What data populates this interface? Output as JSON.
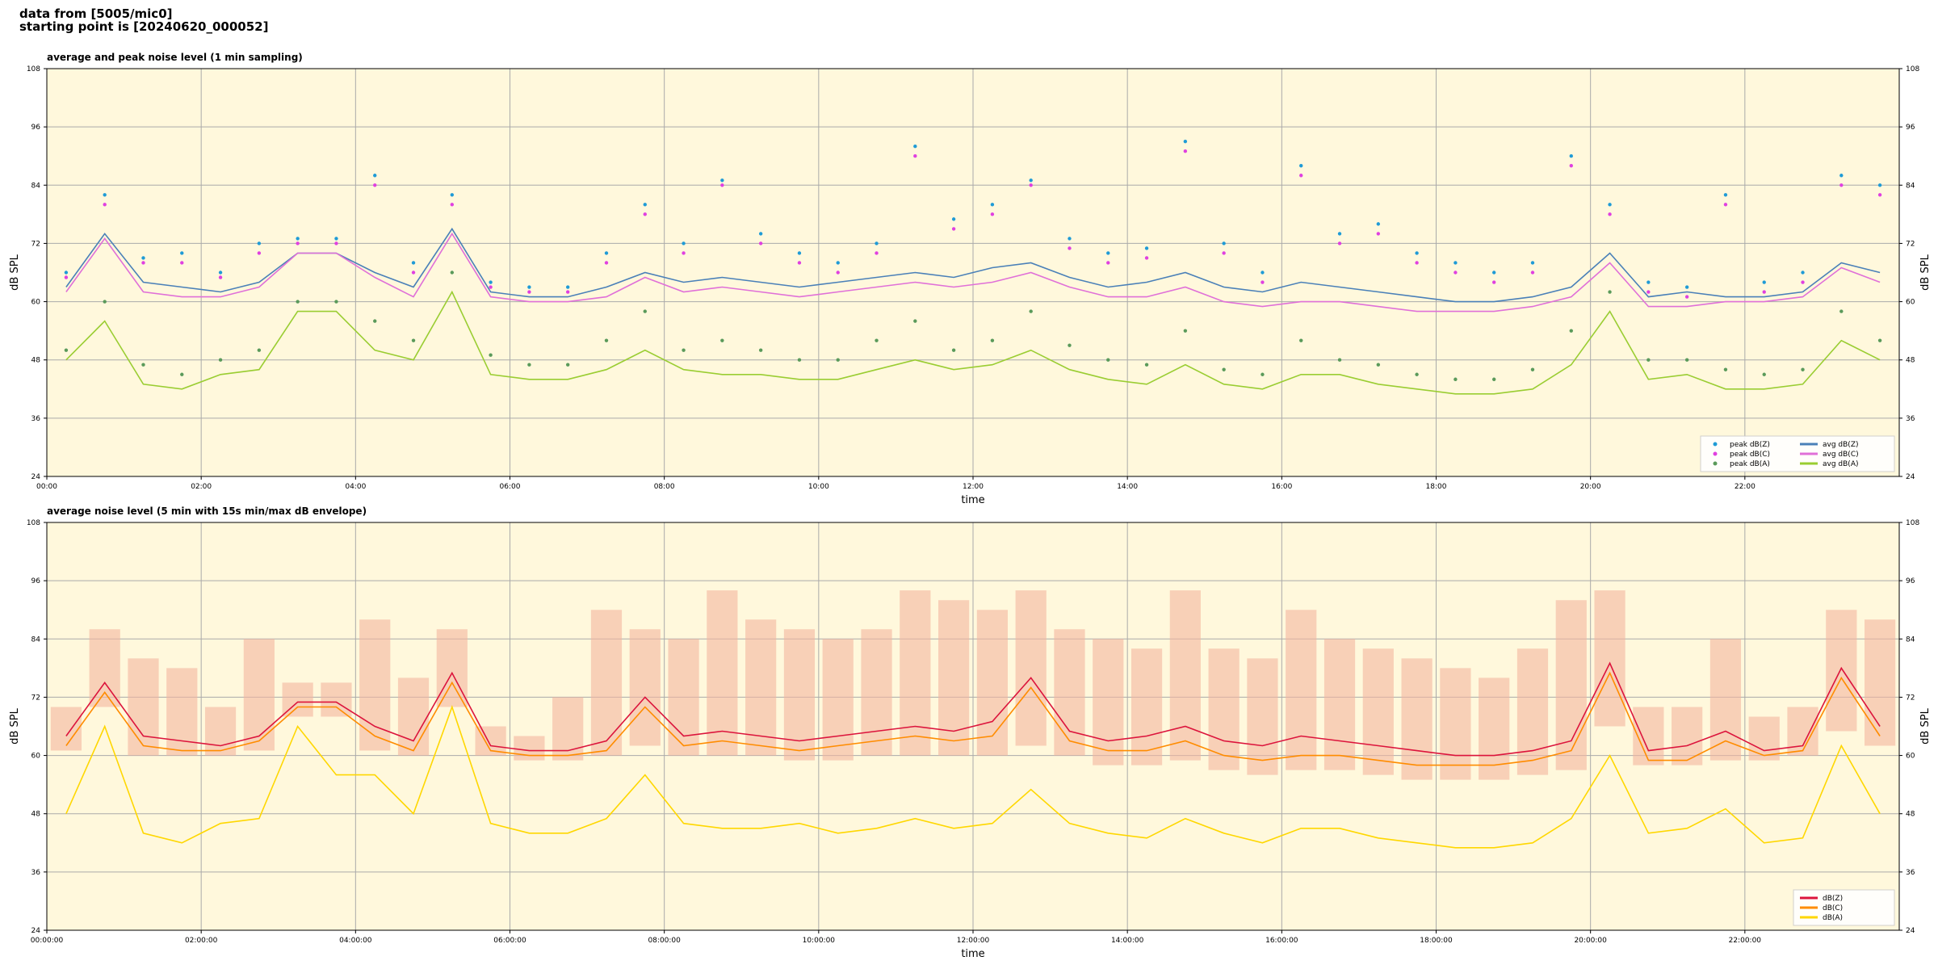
{
  "header": {
    "line1": "data from [5005/mic0]",
    "line2": "starting point is [20240620_000052]"
  },
  "chart_data": [
    {
      "type": "line",
      "title": "average and peak noise level (1 min sampling)",
      "xlabel": "time",
      "ylabel": "dB SPL",
      "background": "#fff8dc",
      "grid": true,
      "legend": "lower right",
      "legend_columns": 2,
      "xlim": [
        0,
        24
      ],
      "ylim": [
        24,
        108
      ],
      "yticks": [
        24,
        36,
        48,
        60,
        72,
        84,
        96,
        108
      ],
      "xticks": [
        {
          "value": 0,
          "label": "00:00"
        },
        {
          "value": 2,
          "label": "02:00"
        },
        {
          "value": 4,
          "label": "04:00"
        },
        {
          "value": 6,
          "label": "06:00"
        },
        {
          "value": 8,
          "label": "08:00"
        },
        {
          "value": 10,
          "label": "10:00"
        },
        {
          "value": 12,
          "label": "12:00"
        },
        {
          "value": 14,
          "label": "14:00"
        },
        {
          "value": 16,
          "label": "16:00"
        },
        {
          "value": 18,
          "label": "18:00"
        },
        {
          "value": 20,
          "label": "20:00"
        },
        {
          "value": 22,
          "label": "22:00"
        }
      ],
      "x": [
        0,
        0.5,
        1,
        1.5,
        2,
        2.5,
        3,
        3.5,
        4,
        4.5,
        5,
        5.5,
        6,
        6.5,
        7,
        7.5,
        8,
        8.5,
        9,
        9.5,
        10,
        10.5,
        11,
        11.5,
        12,
        12.5,
        13,
        13.5,
        14,
        14.5,
        15,
        15.5,
        16,
        16.5,
        17,
        17.5,
        18,
        18.5,
        19,
        19.5,
        20,
        20.5,
        21,
        21.5,
        22,
        22.5,
        23,
        23.5
      ],
      "series": [
        {
          "name": "peak dB(Z)",
          "kind": "dots",
          "color": "#1f9bd6",
          "values": [
            66,
            82,
            69,
            70,
            66,
            72,
            73,
            73,
            86,
            68,
            82,
            64,
            63,
            63,
            70,
            80,
            72,
            85,
            74,
            70,
            68,
            72,
            92,
            77,
            80,
            85,
            73,
            70,
            71,
            93,
            72,
            66,
            88,
            74,
            76,
            70,
            68,
            66,
            68,
            90,
            80,
            64,
            63,
            82,
            64,
            66,
            86,
            84
          ]
        },
        {
          "name": "peak dB(C)",
          "kind": "dots",
          "color": "#e040e0",
          "values": [
            65,
            80,
            68,
            68,
            65,
            70,
            72,
            72,
            84,
            66,
            80,
            63,
            62,
            62,
            68,
            78,
            70,
            84,
            72,
            68,
            66,
            70,
            90,
            75,
            78,
            84,
            71,
            68,
            69,
            91,
            70,
            64,
            86,
            72,
            74,
            68,
            66,
            64,
            66,
            88,
            78,
            62,
            61,
            80,
            62,
            64,
            84,
            82
          ]
        },
        {
          "name": "peak dB(A)",
          "kind": "dots",
          "color": "#5a9a5a",
          "values": [
            50,
            60,
            47,
            45,
            48,
            50,
            60,
            60,
            56,
            52,
            66,
            49,
            47,
            47,
            52,
            58,
            50,
            52,
            50,
            48,
            48,
            52,
            56,
            50,
            52,
            58,
            51,
            48,
            47,
            54,
            46,
            45,
            52,
            48,
            47,
            45,
            44,
            44,
            46,
            54,
            62,
            48,
            48,
            46,
            45,
            46,
            58,
            52
          ]
        },
        {
          "name": "avg dB(Z)",
          "kind": "line",
          "color": "#4a80b8",
          "values": [
            63,
            74,
            64,
            63,
            62,
            64,
            70,
            70,
            66,
            63,
            75,
            62,
            61,
            61,
            63,
            66,
            64,
            65,
            64,
            63,
            64,
            65,
            66,
            65,
            67,
            68,
            65,
            63,
            64,
            66,
            63,
            62,
            64,
            63,
            62,
            61,
            60,
            60,
            61,
            63,
            70,
            61,
            62,
            61,
            61,
            62,
            68,
            66
          ]
        },
        {
          "name": "avg dB(C)",
          "kind": "line",
          "color": "#e070d8",
          "values": [
            62,
            73,
            62,
            61,
            61,
            63,
            70,
            70,
            65,
            61,
            74,
            61,
            60,
            60,
            61,
            65,
            62,
            63,
            62,
            61,
            62,
            63,
            64,
            63,
            64,
            66,
            63,
            61,
            61,
            63,
            60,
            59,
            60,
            60,
            59,
            58,
            58,
            58,
            59,
            61,
            68,
            59,
            59,
            60,
            60,
            61,
            67,
            64
          ]
        },
        {
          "name": "avg dB(A)",
          "kind": "line",
          "color": "#9acd32",
          "values": [
            48,
            56,
            43,
            42,
            45,
            46,
            58,
            58,
            50,
            48,
            62,
            45,
            44,
            44,
            46,
            50,
            46,
            45,
            45,
            44,
            44,
            46,
            48,
            46,
            47,
            50,
            46,
            44,
            43,
            47,
            43,
            42,
            45,
            45,
            43,
            42,
            41,
            41,
            42,
            47,
            58,
            44,
            45,
            42,
            42,
            43,
            52,
            48
          ]
        }
      ]
    },
    {
      "type": "line",
      "title": "average noise level (5 min with 15s min/max dB envelope)",
      "xlabel": "time",
      "ylabel": "dB SPL",
      "background": "#fff8dc",
      "grid": true,
      "legend": "lower right",
      "legend_columns": 1,
      "envelope_color": "#f4b6a0",
      "xlim": [
        0,
        24
      ],
      "ylim": [
        24,
        108
      ],
      "yticks": [
        24,
        36,
        48,
        60,
        72,
        84,
        96,
        108
      ],
      "xticks": [
        {
          "value": 0,
          "label": "00:00:00"
        },
        {
          "value": 2,
          "label": "02:00:00"
        },
        {
          "value": 4,
          "label": "04:00:00"
        },
        {
          "value": 6,
          "label": "06:00:00"
        },
        {
          "value": 8,
          "label": "08:00:00"
        },
        {
          "value": 10,
          "label": "10:00:00"
        },
        {
          "value": 12,
          "label": "12:00:00"
        },
        {
          "value": 14,
          "label": "14:00:00"
        },
        {
          "value": 16,
          "label": "16:00:00"
        },
        {
          "value": 18,
          "label": "18:00:00"
        },
        {
          "value": 20,
          "label": "20:00:00"
        },
        {
          "value": 22,
          "label": "22:00:00"
        }
      ],
      "x": [
        0,
        0.5,
        1,
        1.5,
        2,
        2.5,
        3,
        3.5,
        4,
        4.5,
        5,
        5.5,
        6,
        6.5,
        7,
        7.5,
        8,
        8.5,
        9,
        9.5,
        10,
        10.5,
        11,
        11.5,
        12,
        12.5,
        13,
        13.5,
        14,
        14.5,
        15,
        15.5,
        16,
        16.5,
        17,
        17.5,
        18,
        18.5,
        19,
        19.5,
        20,
        20.5,
        21,
        21.5,
        22,
        22.5,
        23,
        23.5
      ],
      "series": [
        {
          "name": "dB(Z)",
          "color": "#dc143c",
          "values": [
            64,
            75,
            64,
            63,
            62,
            64,
            71,
            71,
            66,
            63,
            77,
            62,
            61,
            61,
            63,
            72,
            64,
            65,
            64,
            63,
            64,
            65,
            66,
            65,
            67,
            76,
            65,
            63,
            64,
            66,
            63,
            62,
            64,
            63,
            62,
            61,
            60,
            60,
            61,
            63,
            79,
            61,
            62,
            65,
            61,
            62,
            78,
            66
          ],
          "envelope": {
            "min": [
              61,
              70,
              60,
              60,
              60,
              61,
              68,
              68,
              61,
              60,
              70,
              60,
              59,
              59,
              60,
              62,
              60,
              60,
              60,
              59,
              59,
              60,
              60,
              60,
              60,
              62,
              60,
              58,
              58,
              59,
              57,
              56,
              57,
              57,
              56,
              55,
              55,
              55,
              56,
              57,
              66,
              58,
              58,
              59,
              59,
              60,
              65,
              62
            ],
            "max": [
              70,
              86,
              80,
              78,
              70,
              84,
              75,
              75,
              88,
              76,
              86,
              66,
              64,
              72,
              90,
              86,
              84,
              94,
              88,
              86,
              84,
              86,
              94,
              92,
              90,
              94,
              86,
              84,
              82,
              94,
              82,
              80,
              90,
              84,
              82,
              80,
              78,
              76,
              82,
              92,
              94,
              70,
              70,
              84,
              68,
              70,
              90,
              88
            ]
          }
        },
        {
          "name": "dB(C)",
          "color": "#ff8c00",
          "values": [
            62,
            73,
            62,
            61,
            61,
            63,
            70,
            70,
            64,
            61,
            75,
            61,
            60,
            60,
            61,
            70,
            62,
            63,
            62,
            61,
            62,
            63,
            64,
            63,
            64,
            74,
            63,
            61,
            61,
            63,
            60,
            59,
            60,
            60,
            59,
            58,
            58,
            58,
            59,
            61,
            77,
            59,
            59,
            63,
            60,
            61,
            76,
            64
          ]
        },
        {
          "name": "dB(A)",
          "color": "#ffd700",
          "values": [
            48,
            66,
            44,
            42,
            46,
            47,
            66,
            56,
            56,
            48,
            70,
            46,
            44,
            44,
            47,
            56,
            46,
            45,
            45,
            46,
            44,
            45,
            47,
            45,
            46,
            53,
            46,
            44,
            43,
            47,
            44,
            42,
            45,
            45,
            43,
            42,
            41,
            41,
            42,
            47,
            60,
            44,
            45,
            49,
            42,
            43,
            62,
            48
          ]
        }
      ]
    }
  ]
}
